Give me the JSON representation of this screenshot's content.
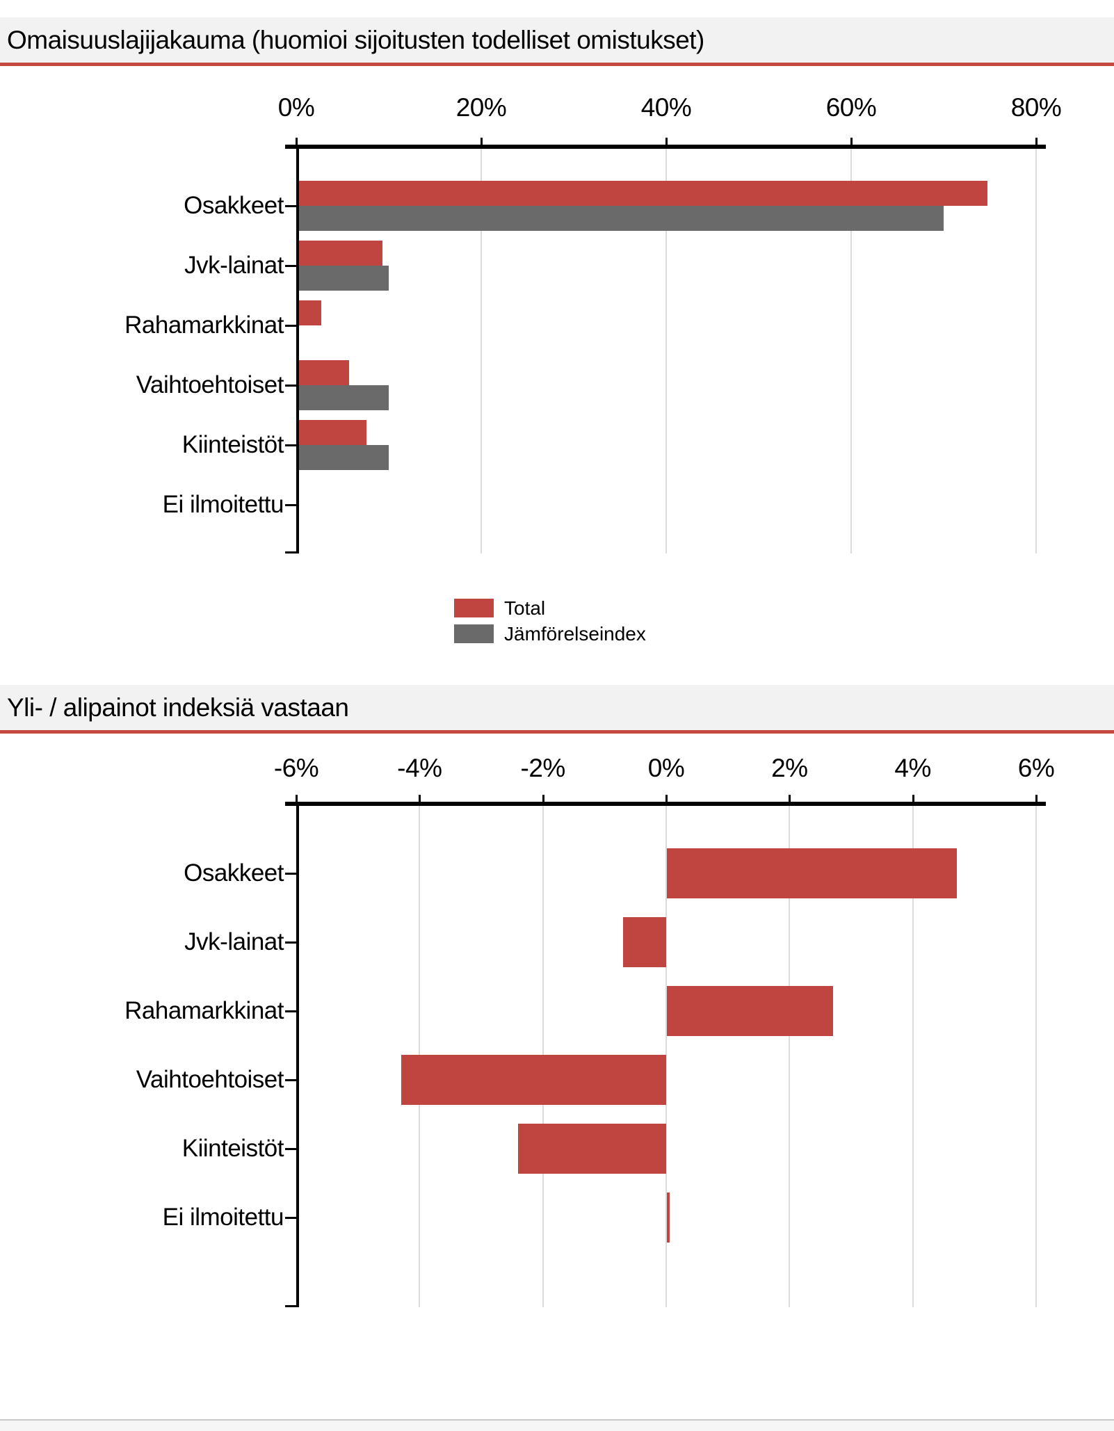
{
  "sections": [
    {
      "title": "Omaisuuslajijakauma (huomioi sijoitusten todelliset omistukset)"
    },
    {
      "title": "Yli- / alipainot indeksiä vastaan"
    }
  ],
  "colors": {
    "series_total": "#c04440",
    "series_index": "#6a6a6a",
    "title_rule": "#c4493f",
    "title_background": "#f2f2f2",
    "gridline": "#dcdcdc",
    "axis": "#000000"
  },
  "legend": [
    {
      "label": "Total",
      "color": "#c04440"
    },
    {
      "label": "Jämförelseindex",
      "color": "#6a6a6a"
    }
  ],
  "chart_data": [
    {
      "type": "bar",
      "orientation": "horizontal",
      "title": "Omaisuuslajijakauma (huomioi sijoitusten todelliset omistukset)",
      "categories": [
        "Osakkeet",
        "Jvk-lainat",
        "Rahamarkkinat",
        "Vaihtoehtoiset",
        "Kiinteistöt",
        "Ei ilmoitettu"
      ],
      "series": [
        {
          "name": "Total",
          "color": "#c04440",
          "values": [
            74.7,
            9.3,
            2.7,
            5.7,
            7.6,
            0.0
          ]
        },
        {
          "name": "Jämförelseindex",
          "color": "#6a6a6a",
          "values": [
            70.0,
            10.0,
            0.0,
            10.0,
            10.0,
            0.0
          ]
        }
      ],
      "xlim": [
        0,
        80
      ],
      "xticks": [
        "0%",
        "20%",
        "40%",
        "60%",
        "80%"
      ],
      "xtick_values": [
        0,
        20,
        40,
        60,
        80
      ],
      "grid": true,
      "legend_position": "bottom"
    },
    {
      "type": "bar",
      "orientation": "horizontal",
      "title": "Yli- / alipainot indeksiä vastaan",
      "categories": [
        "Osakkeet",
        "Jvk-lainat",
        "Rahamarkkinat",
        "Vaihtoehtoiset",
        "Kiinteistöt",
        "Ei ilmoitettu"
      ],
      "series": [
        {
          "name": "Total",
          "color": "#c04440",
          "values": [
            4.7,
            -0.7,
            2.7,
            -4.3,
            -2.4,
            0.05
          ]
        }
      ],
      "xlim": [
        -6,
        6
      ],
      "xticks": [
        "-6%",
        "-4%",
        "-2%",
        "0%",
        "2%",
        "4%",
        "6%"
      ],
      "xtick_values": [
        -6,
        -4,
        -2,
        0,
        2,
        4,
        6
      ],
      "grid": true,
      "legend_position": "none"
    }
  ]
}
